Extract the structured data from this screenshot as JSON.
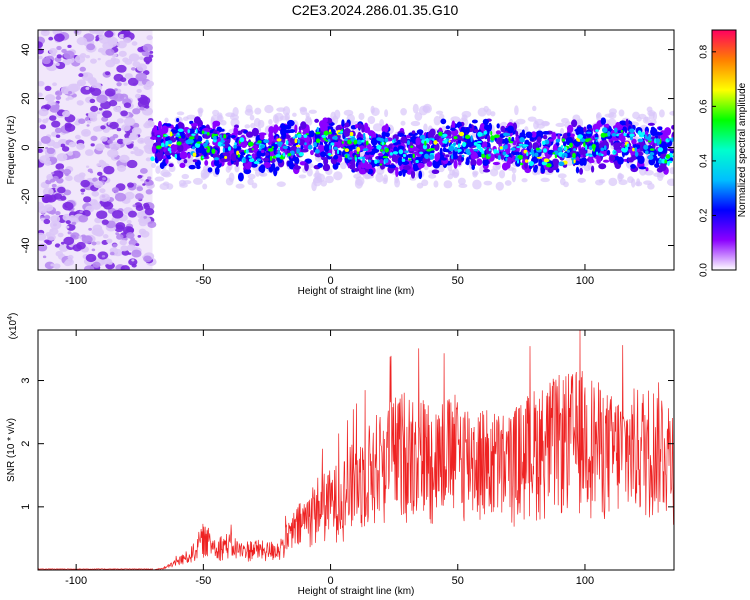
{
  "page": {
    "title": "C2E3.2024.286.01.35.G10"
  },
  "colors": {
    "snr_line": "#ee2222",
    "axis": "#000000",
    "noise_region": "#8b3be0"
  },
  "chart_data": [
    {
      "type": "heatmap",
      "title": "C2E3.2024.286.01.35.G10",
      "xlabel": "Height of straight line (km)",
      "ylabel": "Frequency (Hz)",
      "xlim": [
        -115,
        135
      ],
      "ylim": [
        -50,
        48
      ],
      "x_ticks": [
        -100,
        -50,
        0,
        50,
        100
      ],
      "y_ticks": [
        -40,
        -20,
        0,
        20,
        40
      ],
      "noise_region_x": [
        -115,
        -70
      ],
      "signal_band": {
        "x_range": [
          -70,
          135
        ],
        "center_freq": 0,
        "half_width": 10
      },
      "colorbar": {
        "label": "Normalized spectral amplitude",
        "range": [
          0.0,
          0.88
        ],
        "ticks": [
          0.0,
          0.2,
          0.4,
          0.6,
          0.8
        ],
        "colormap": [
          "#ffffff",
          "#8b00ff",
          "#0000ff",
          "#00ffff",
          "#00ff00",
          "#ffff00",
          "#ff8000",
          "#ff0060"
        ]
      }
    },
    {
      "type": "line",
      "xlabel": "Height of straight line (km)",
      "ylabel": "SNR (10 * v/v)",
      "y_multiplier": "(x10",
      "y_multiplier_exp": "4",
      "y_multiplier_close": ")",
      "xlim": [
        -115,
        135
      ],
      "ylim": [
        0,
        3.8
      ],
      "x_ticks": [
        -100,
        -50,
        0,
        50,
        100
      ],
      "y_ticks": [
        1,
        2,
        3
      ],
      "envelope": [
        [
          -115,
          0.0
        ],
        [
          -70,
          0.0
        ],
        [
          -65,
          0.05
        ],
        [
          -60,
          0.2
        ],
        [
          -55,
          0.35
        ],
        [
          -50,
          0.75
        ],
        [
          -45,
          0.55
        ],
        [
          -40,
          0.6
        ],
        [
          -35,
          0.45
        ],
        [
          -30,
          0.5
        ],
        [
          -25,
          0.45
        ],
        [
          -20,
          0.5
        ],
        [
          -15,
          0.9
        ],
        [
          -10,
          1.2
        ],
        [
          -5,
          1.5
        ],
        [
          0,
          1.6
        ],
        [
          5,
          1.8
        ],
        [
          10,
          2.1
        ],
        [
          20,
          2.6
        ],
        [
          30,
          2.9
        ],
        [
          40,
          2.7
        ],
        [
          50,
          2.8
        ],
        [
          60,
          2.6
        ],
        [
          70,
          2.5
        ],
        [
          80,
          2.9
        ],
        [
          90,
          3.1
        ],
        [
          100,
          3.2
        ],
        [
          110,
          2.8
        ],
        [
          120,
          2.9
        ],
        [
          130,
          3.0
        ],
        [
          135,
          2.7
        ]
      ]
    }
  ]
}
